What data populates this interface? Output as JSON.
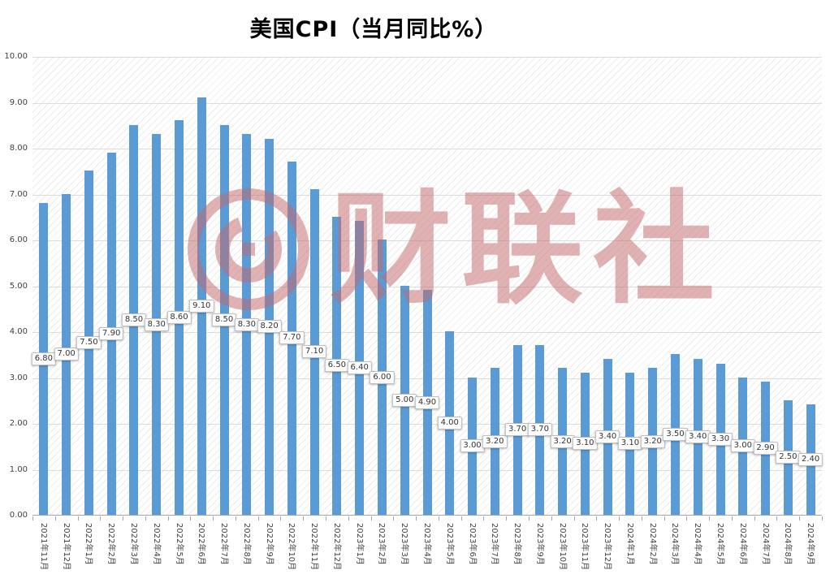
{
  "title": "美国CPI（当月同比%）",
  "watermark": {
    "text": "财联社",
    "color": "#C4686B"
  },
  "chart_data": {
    "type": "bar",
    "title": "美国CPI（当月同比%）",
    "xlabel": "",
    "ylabel": "",
    "ylim": [
      0,
      10
    ],
    "y_ticks": [
      "0.00",
      "1.00",
      "2.00",
      "3.00",
      "4.00",
      "5.00",
      "6.00",
      "7.00",
      "8.00",
      "9.00",
      "10.00"
    ],
    "grid": true,
    "legend": "none",
    "bar_color": "#5B9BD5",
    "categories": [
      "2021年11月",
      "2021年12月",
      "2022年1月",
      "2022年2月",
      "2022年3月",
      "2022年4月",
      "2022年5月",
      "2022年6月",
      "2022年7月",
      "2022年8月",
      "2022年9月",
      "2022年10月",
      "2022年11月",
      "2022年12月",
      "2023年1月",
      "2023年2月",
      "2023年3月",
      "2023年4月",
      "2023年5月",
      "2023年6月",
      "2023年7月",
      "2023年8月",
      "2023年9月",
      "2023年10月",
      "2023年11月",
      "2023年12月",
      "2024年1月",
      "2024年2月",
      "2024年3月",
      "2024年4月",
      "2024年5月",
      "2024年6月",
      "2024年7月",
      "2024年8月",
      "2024年9月"
    ],
    "values": [
      6.8,
      7.0,
      7.5,
      7.9,
      8.5,
      8.3,
      8.6,
      9.1,
      8.5,
      8.3,
      8.2,
      7.7,
      7.1,
      6.5,
      6.4,
      6.0,
      5.0,
      4.9,
      4.0,
      3.0,
      3.2,
      3.7,
      3.7,
      3.2,
      3.1,
      3.4,
      3.1,
      3.2,
      3.5,
      3.4,
      3.3,
      3.0,
      2.9,
      2.5,
      2.4
    ],
    "data_labels": [
      "6.80",
      "7.00",
      "7.50",
      "7.90",
      "8.50",
      "8.30",
      "8.60",
      "9.10",
      "8.50",
      "8.30",
      "8.20",
      "7.70",
      "7.10",
      "6.50",
      "6.40",
      "6.00",
      "5.00",
      "4.90",
      "4.00",
      "3.00",
      "3.20",
      "3.70",
      "3.70",
      "3.20",
      "3.10",
      "3.40",
      "3.10",
      "3.20",
      "3.50",
      "3.40",
      "3.30",
      "3.00",
      "2.90",
      "2.50",
      "2.40"
    ]
  }
}
